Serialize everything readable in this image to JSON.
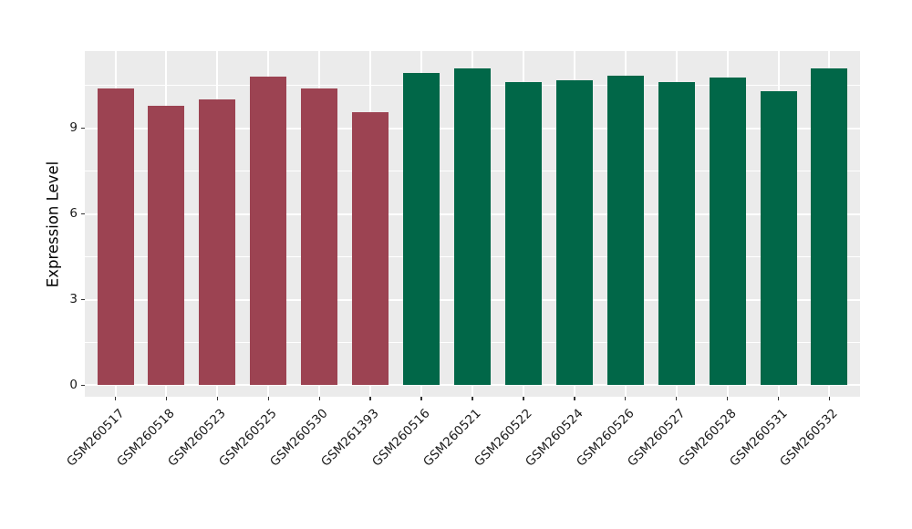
{
  "figure": {
    "background": "#FFFFFF",
    "panel_background": "#EBEBEB",
    "grid_color": "#FFFFFF",
    "tick_color": "#333333",
    "label_color": "#1A1A1A"
  },
  "chart_data": {
    "type": "bar",
    "title": "",
    "xlabel": "",
    "ylabel": "Expression Level",
    "ylim": [
      -0.4,
      11.7
    ],
    "yticks": [
      0,
      3,
      6,
      9
    ],
    "yticks_minor": [
      1.5,
      4.5,
      7.5,
      10.5
    ],
    "grid": true,
    "legend": false,
    "categories": [
      "GSM260517",
      "GSM260518",
      "GSM260523",
      "GSM260525",
      "GSM260530",
      "GSM261393",
      "GSM260516",
      "GSM260521",
      "GSM260522",
      "GSM260524",
      "GSM260526",
      "GSM260527",
      "GSM260528",
      "GSM260531",
      "GSM260532"
    ],
    "values": [
      10.4,
      9.79,
      10.02,
      10.8,
      10.4,
      9.56,
      10.92,
      11.09,
      10.63,
      10.69,
      10.85,
      10.63,
      10.79,
      10.31,
      11.09
    ],
    "bar_colors": [
      "#9C4352",
      "#9C4352",
      "#9C4352",
      "#9C4352",
      "#9C4352",
      "#9C4352",
      "#016748",
      "#016748",
      "#016748",
      "#016748",
      "#016748",
      "#016748",
      "#016748",
      "#016748",
      "#016748"
    ],
    "group_colors": {
      "group_1": "#9C4352",
      "group_2": "#016748"
    }
  }
}
